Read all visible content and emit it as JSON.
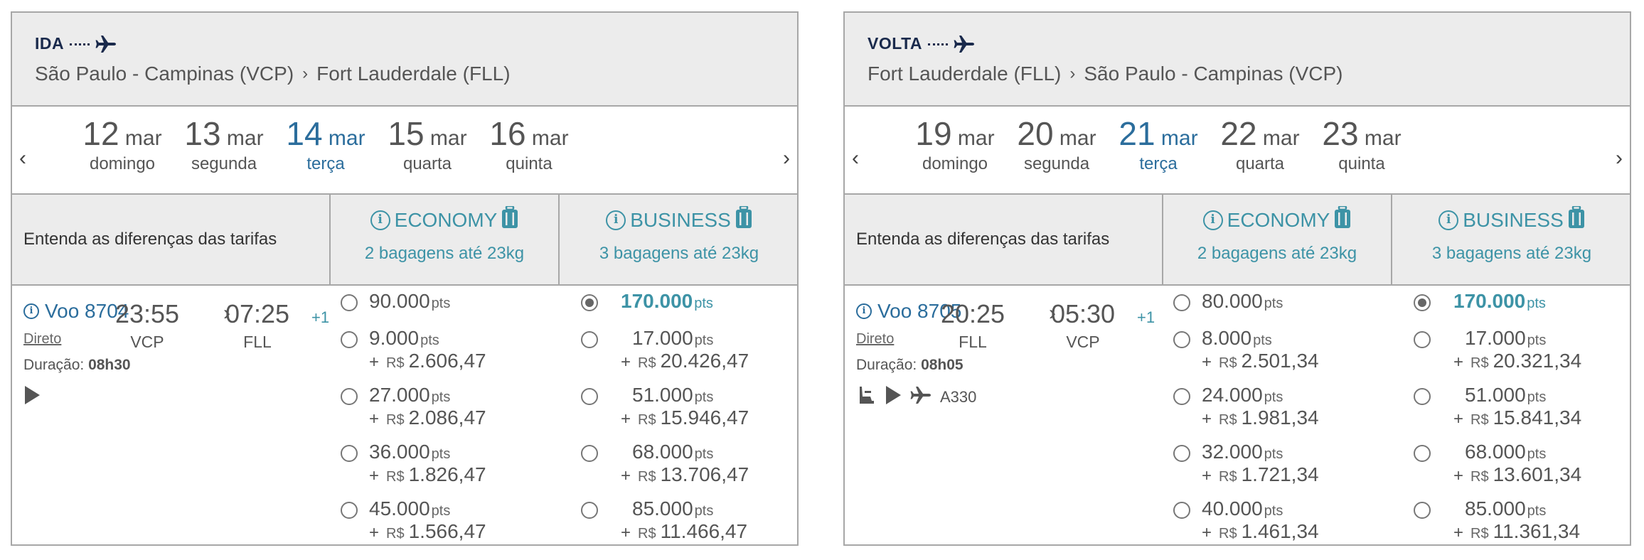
{
  "panels": {
    "ida": {
      "tag": "IDA",
      "origin": "São Paulo - Campinas (VCP)",
      "destination": "Fort Lauderdale (FLL)",
      "dates": [
        {
          "day": "12",
          "month": "mar",
          "weekday": "domingo"
        },
        {
          "day": "13",
          "month": "mar",
          "weekday": "segunda"
        },
        {
          "day": "14",
          "month": "mar",
          "weekday": "terça"
        },
        {
          "day": "15",
          "month": "mar",
          "weekday": "quarta"
        },
        {
          "day": "16",
          "month": "mar",
          "weekday": "quinta"
        }
      ],
      "fare_note": "Entenda as diferenças das tarifas",
      "economy": {
        "label": "ECONOMY",
        "bags": "2 bagagens até 23kg"
      },
      "business": {
        "label": "BUSINESS",
        "bags": "3 bagagens até 23kg"
      },
      "flight": {
        "number": "Voo 8704",
        "depart": "23:55",
        "depart_airport": "VCP",
        "arrive": "07:25",
        "arrive_airport": "FLL",
        "plus_day": "+1",
        "type": "Direto",
        "duration_label": "Duração:",
        "duration": "08h30",
        "aircraft": ""
      },
      "economy_options": [
        {
          "points": "90.000",
          "cash": ""
        },
        {
          "points": "9.000",
          "cash": "2.606,47"
        },
        {
          "points": "27.000",
          "cash": "2.086,47"
        },
        {
          "points": "36.000",
          "cash": "1.826,47"
        },
        {
          "points": "45.000",
          "cash": "1.566,47"
        }
      ],
      "business_options": [
        {
          "points": "170.000",
          "cash": ""
        },
        {
          "points": "17.000",
          "cash": "20.426,47"
        },
        {
          "points": "51.000",
          "cash": "15.946,47"
        },
        {
          "points": "68.000",
          "cash": "13.706,47"
        },
        {
          "points": "85.000",
          "cash": "11.466,47"
        }
      ]
    },
    "volta": {
      "tag": "VOLTA",
      "origin": "Fort Lauderdale (FLL)",
      "destination": "São Paulo - Campinas (VCP)",
      "dates": [
        {
          "day": "19",
          "month": "mar",
          "weekday": "domingo"
        },
        {
          "day": "20",
          "month": "mar",
          "weekday": "segunda"
        },
        {
          "day": "21",
          "month": "mar",
          "weekday": "terça"
        },
        {
          "day": "22",
          "month": "mar",
          "weekday": "quarta"
        },
        {
          "day": "23",
          "month": "mar",
          "weekday": "quinta"
        }
      ],
      "fare_note": "Entenda as diferenças das tarifas",
      "economy": {
        "label": "ECONOMY",
        "bags": "2 bagagens até 23kg"
      },
      "business": {
        "label": "BUSINESS",
        "bags": "3 bagagens até 23kg"
      },
      "flight": {
        "number": "Voo 8705",
        "depart": "20:25",
        "depart_airport": "FLL",
        "arrive": "05:30",
        "arrive_airport": "VCP",
        "plus_day": "+1",
        "type": "Direto",
        "duration_label": "Duração:",
        "duration": "08h05",
        "aircraft": "A330"
      },
      "economy_options": [
        {
          "points": "80.000",
          "cash": ""
        },
        {
          "points": "8.000",
          "cash": "2.501,34"
        },
        {
          "points": "24.000",
          "cash": "1.981,34"
        },
        {
          "points": "32.000",
          "cash": "1.721,34"
        },
        {
          "points": "40.000",
          "cash": "1.461,34"
        }
      ],
      "business_options": [
        {
          "points": "170.000",
          "cash": ""
        },
        {
          "points": "17.000",
          "cash": "20.321,34"
        },
        {
          "points": "51.000",
          "cash": "15.841,34"
        },
        {
          "points": "68.000",
          "cash": "13.601,34"
        },
        {
          "points": "85.000",
          "cash": "11.361,34"
        }
      ]
    }
  },
  "labels": {
    "pts_unit": "pts",
    "currency": "R$",
    "plus": "+",
    "prev": "‹",
    "next": "›",
    "chevron": "›",
    "times_sep": "›"
  },
  "selected_date_index": 2,
  "selected_fare": "business-0",
  "colors": {
    "accent": "#3d93a6",
    "link": "#2b6d9c",
    "header_bg": "#ececec",
    "border": "#a7a7a7",
    "navy": "#1a2a4c"
  },
  "icons": [
    "plane-icon",
    "info-icon",
    "baggage-icon",
    "play-icon",
    "seat-icon",
    "radio-icon"
  ]
}
